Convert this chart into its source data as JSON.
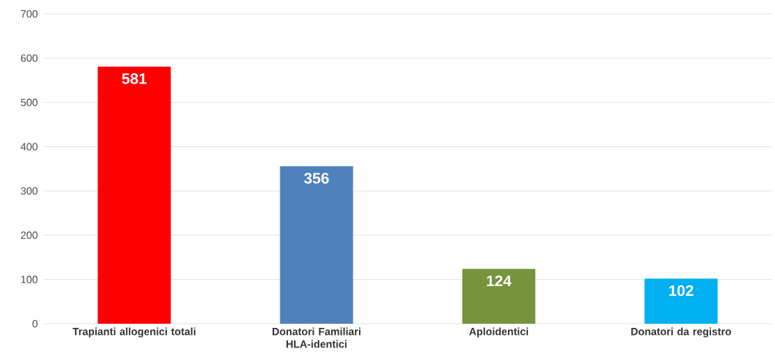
{
  "chart_data": {
    "type": "bar",
    "categories": [
      "Trapianti allogenici totali",
      "Donatori Familiari HLA-identici",
      "Aploidentici",
      "Donatori da registro"
    ],
    "values": [
      581,
      356,
      124,
      102
    ],
    "colors": [
      "#ff0000",
      "#4f81bd",
      "#77933c",
      "#00b0f0"
    ],
    "ylim": [
      0,
      700
    ],
    "yticks": [
      0,
      100,
      200,
      300,
      400,
      500,
      600,
      700
    ],
    "grid": "y",
    "data_labels": true
  }
}
